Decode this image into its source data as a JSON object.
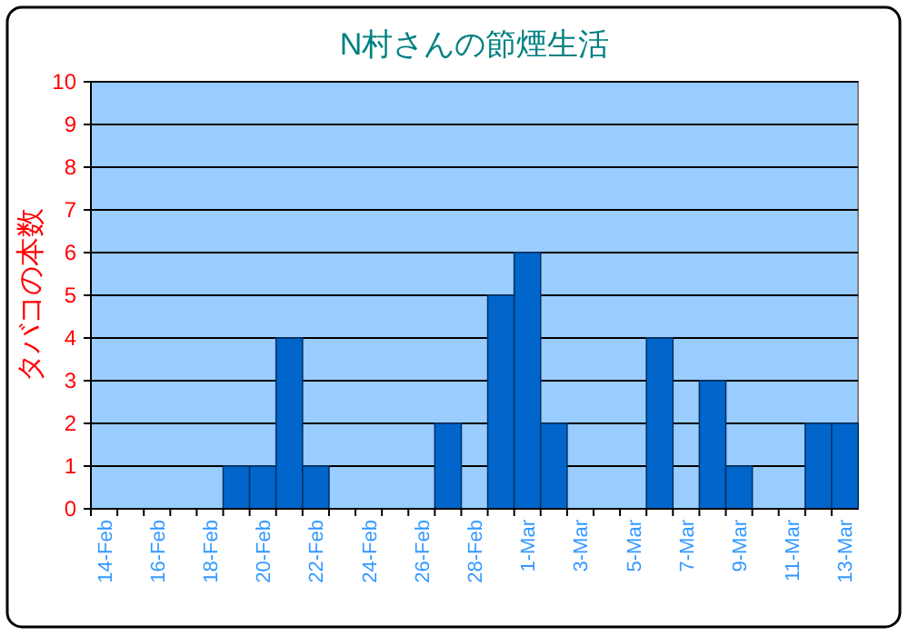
{
  "chart_data": {
    "type": "bar",
    "title": "N村さんの節煙生活",
    "ylabel": "タバコの本数",
    "categories": [
      "14-Feb",
      null,
      "16-Feb",
      null,
      "18-Feb",
      null,
      "20-Feb",
      null,
      "22-Feb",
      null,
      "24-Feb",
      null,
      "26-Feb",
      null,
      "28-Feb",
      null,
      "1-Mar",
      null,
      "3-Mar",
      null,
      "5-Mar",
      null,
      "7-Mar",
      null,
      "9-Mar",
      null,
      "11-Mar",
      null,
      "13-Mar"
    ],
    "values": [
      0,
      0,
      0,
      0,
      0,
      1,
      1,
      4,
      1,
      0,
      0,
      0,
      0,
      2,
      0,
      5,
      6,
      2,
      0,
      0,
      0,
      4,
      0,
      3,
      1,
      0,
      0,
      2,
      2
    ],
    "color": "#0066cc",
    "ylim": [
      0,
      10
    ],
    "yticks": [
      0,
      1,
      2,
      3,
      4,
      5,
      6,
      7,
      8,
      9,
      10
    ],
    "grid": "y"
  }
}
